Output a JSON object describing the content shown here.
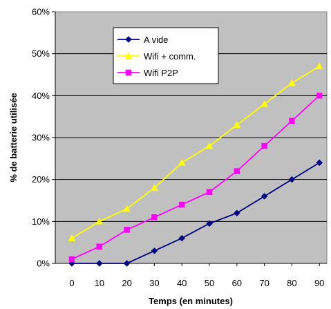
{
  "chart_data": {
    "type": "line",
    "title": "",
    "xlabel": "Temps (en minutes)",
    "ylabel": "% de batterie utilisée",
    "x": [
      0,
      10,
      20,
      30,
      40,
      50,
      60,
      70,
      80,
      90
    ],
    "x_tick_labels": [
      "0",
      "10",
      "20",
      "30",
      "40",
      "50",
      "60",
      "70",
      "80",
      "90"
    ],
    "ylim": [
      0,
      60
    ],
    "y_ticks": [
      0,
      10,
      20,
      30,
      40,
      50,
      60
    ],
    "y_tick_labels": [
      "0%",
      "10%",
      "20%",
      "30%",
      "40%",
      "50%",
      "60%"
    ],
    "grid": "horizontal",
    "legend_position": "top-left",
    "plot_background": "#c0c0c0",
    "series": [
      {
        "name": "A vide",
        "color": "#000080",
        "marker": "diamond",
        "values": [
          0,
          0,
          0,
          3,
          6,
          9.5,
          12,
          16,
          20,
          24
        ]
      },
      {
        "name": "Wifi + comm.",
        "color": "#ffff00",
        "marker": "triangle",
        "values": [
          6,
          10,
          13,
          18,
          24,
          28,
          33,
          38,
          43,
          47
        ]
      },
      {
        "name": "Wifi P2P",
        "color": "#ff00ff",
        "marker": "square",
        "values": [
          1,
          4,
          8,
          11,
          14,
          17,
          22,
          28,
          34,
          40
        ]
      }
    ]
  }
}
